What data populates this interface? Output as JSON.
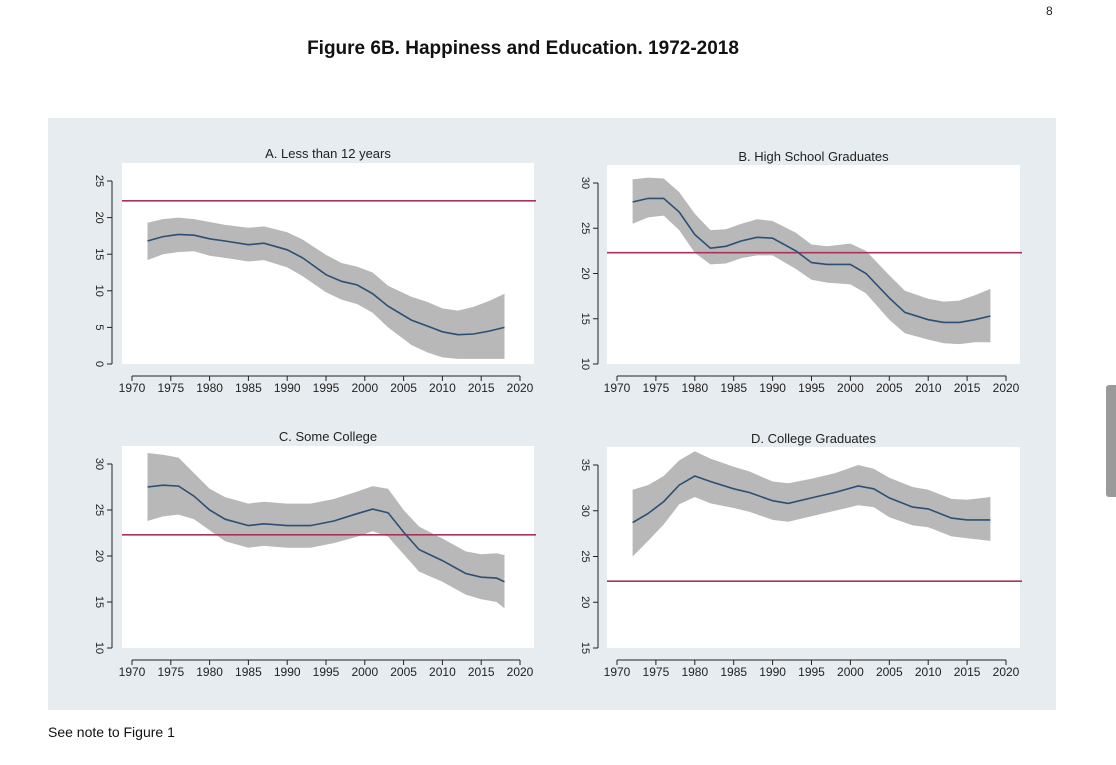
{
  "page_number": "8",
  "figure_title": "Figure 6B.  Happiness and Education. 1972-2018",
  "note": "See note to Figure 1",
  "colors": {
    "background": "#e7ecf0",
    "plot_area": "#ffffff",
    "band": "#b8b8b8",
    "line": "#2b4f75",
    "reference_line": "#a8345a"
  },
  "chart_data": [
    {
      "type": "line",
      "title": "A. Less than 12 years",
      "x_ticks": [
        1970,
        1975,
        1980,
        1985,
        1990,
        1995,
        2000,
        2005,
        2010,
        2015,
        2020
      ],
      "y_ticks": [
        0,
        5,
        10,
        15,
        20,
        25
      ],
      "ylim": [
        0,
        25
      ],
      "xlim": [
        1970,
        2020
      ],
      "reference_line": 22.3,
      "x": [
        1972,
        1974,
        1976,
        1978,
        1980,
        1982,
        1985,
        1987,
        1990,
        1992,
        1995,
        1997,
        1999,
        2001,
        2003,
        2006,
        2008,
        2010,
        2012,
        2014,
        2016,
        2018
      ],
      "y": [
        16.8,
        17.4,
        17.7,
        17.6,
        17.1,
        16.8,
        16.3,
        16.5,
        15.6,
        14.5,
        12.2,
        11.3,
        10.8,
        9.6,
        7.9,
        6.0,
        5.2,
        4.4,
        4.0,
        4.1,
        4.5,
        5.0
      ],
      "lower": [
        14.2,
        15.0,
        15.3,
        15.4,
        14.8,
        14.5,
        14.0,
        14.2,
        13.2,
        12.0,
        9.8,
        8.8,
        8.2,
        7.0,
        5.0,
        2.6,
        1.6,
        0.9,
        0.7,
        0.7,
        0.7,
        0.7
      ],
      "upper": [
        19.3,
        19.8,
        20.0,
        19.8,
        19.4,
        19.0,
        18.6,
        18.8,
        18.0,
        17.0,
        14.9,
        13.8,
        13.3,
        12.5,
        10.7,
        9.2,
        8.5,
        7.6,
        7.3,
        7.8,
        8.6,
        9.6
      ]
    },
    {
      "type": "line",
      "title": "B.  High School Graduates",
      "x_ticks": [
        1970,
        1975,
        1980,
        1985,
        1990,
        1995,
        2000,
        2005,
        2010,
        2015,
        2020
      ],
      "y_ticks": [
        10,
        15,
        20,
        25,
        30
      ],
      "ylim": [
        10,
        30
      ],
      "xlim": [
        1970,
        2020
      ],
      "reference_line": 22.3,
      "x": [
        1972,
        1974,
        1976,
        1978,
        1980,
        1982,
        1984,
        1986,
        1988,
        1990,
        1993,
        1995,
        1997,
        2000,
        2002,
        2005,
        2007,
        2010,
        2012,
        2014,
        2016,
        2018
      ],
      "y": [
        27.9,
        28.3,
        28.3,
        26.8,
        24.3,
        22.8,
        23.0,
        23.6,
        24.0,
        23.9,
        22.5,
        21.2,
        21.0,
        21.0,
        20.0,
        17.3,
        15.7,
        14.9,
        14.6,
        14.6,
        14.9,
        15.3
      ],
      "lower": [
        25.5,
        26.2,
        26.4,
        24.8,
        22.3,
        21.0,
        21.1,
        21.7,
        22.0,
        22.0,
        20.5,
        19.3,
        19.0,
        18.8,
        17.8,
        14.9,
        13.4,
        12.7,
        12.3,
        12.2,
        12.4,
        12.4
      ],
      "upper": [
        30.4,
        30.6,
        30.5,
        29.0,
        26.6,
        24.8,
        24.9,
        25.5,
        26.0,
        25.8,
        24.5,
        23.2,
        23.0,
        23.3,
        22.5,
        19.8,
        18.1,
        17.2,
        16.9,
        17.0,
        17.6,
        18.3
      ]
    },
    {
      "type": "line",
      "title": "C. Some College",
      "x_ticks": [
        1970,
        1975,
        1980,
        1985,
        1990,
        1995,
        2000,
        2005,
        2010,
        2015,
        2020
      ],
      "y_ticks": [
        10,
        15,
        20,
        25,
        30
      ],
      "ylim": [
        10,
        30
      ],
      "xlim": [
        1970,
        2020
      ],
      "reference_line": 22.3,
      "x": [
        1972,
        1974,
        1976,
        1978,
        1980,
        1982,
        1985,
        1987,
        1990,
        1993,
        1996,
        1999,
        2001,
        2003,
        2005,
        2007,
        2010,
        2013,
        2015,
        2017,
        2018
      ],
      "y": [
        27.5,
        27.7,
        27.6,
        26.5,
        25.0,
        24.0,
        23.3,
        23.5,
        23.3,
        23.3,
        23.8,
        24.6,
        25.1,
        24.7,
        22.6,
        20.7,
        19.5,
        18.1,
        17.7,
        17.6,
        17.2
      ],
      "lower": [
        23.8,
        24.3,
        24.5,
        24.0,
        22.8,
        21.6,
        20.9,
        21.1,
        20.9,
        20.9,
        21.4,
        22.1,
        22.7,
        22.1,
        20.2,
        18.3,
        17.2,
        15.8,
        15.3,
        15.0,
        14.3
      ],
      "upper": [
        31.2,
        31.0,
        30.7,
        29.0,
        27.3,
        26.4,
        25.7,
        25.9,
        25.7,
        25.7,
        26.2,
        27.0,
        27.6,
        27.3,
        25.0,
        23.2,
        21.9,
        20.5,
        20.2,
        20.3,
        20.1
      ]
    },
    {
      "type": "line",
      "title": "D. College Graduates",
      "x_ticks": [
        1970,
        1975,
        1980,
        1985,
        1990,
        1995,
        2000,
        2005,
        2010,
        2015,
        2020
      ],
      "y_ticks": [
        15,
        20,
        25,
        30,
        35
      ],
      "ylim": [
        15,
        35
      ],
      "xlim": [
        1970,
        2020
      ],
      "reference_line": 22.3,
      "x": [
        1972,
        1974,
        1976,
        1978,
        1980,
        1982,
        1985,
        1987,
        1990,
        1992,
        1995,
        1998,
        2001,
        2003,
        2005,
        2008,
        2010,
        2013,
        2015,
        2018
      ],
      "y": [
        28.7,
        29.7,
        31.0,
        32.8,
        33.8,
        33.2,
        32.4,
        32.0,
        31.1,
        30.8,
        31.4,
        32.0,
        32.7,
        32.4,
        31.4,
        30.4,
        30.2,
        29.2,
        29.0,
        29.0
      ],
      "lower": [
        25.0,
        26.7,
        28.5,
        30.7,
        31.5,
        30.8,
        30.3,
        29.9,
        29.0,
        28.8,
        29.4,
        30.0,
        30.6,
        30.4,
        29.3,
        28.4,
        28.2,
        27.2,
        27.0,
        26.7
      ],
      "upper": [
        32.3,
        32.8,
        33.8,
        35.5,
        36.5,
        35.7,
        34.8,
        34.3,
        33.2,
        33.0,
        33.5,
        34.1,
        35.0,
        34.6,
        33.6,
        32.6,
        32.3,
        31.3,
        31.2,
        31.5
      ]
    }
  ]
}
